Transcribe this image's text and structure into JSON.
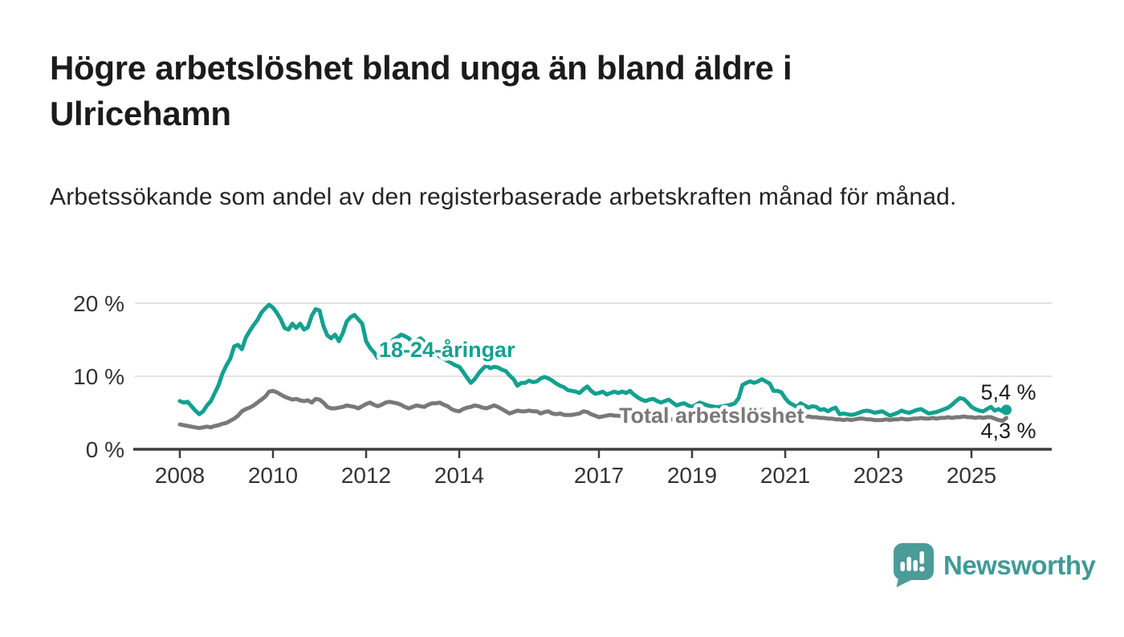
{
  "title": "Högre arbetslöshet bland unga än bland äldre i Ulricehamn",
  "subtitle": "Arbetssökande som andel av den registerbaserade arbetskraften månad för månad.",
  "branding": {
    "logo_text": "Newsworthy",
    "logo_icon": "speech-bubble-bar-chart-icon",
    "logo_icon_color": "#4a9c99",
    "logo_text_color": "#3f9a97"
  },
  "chart_data": {
    "type": "line",
    "unit": "%",
    "x_label": "",
    "y_label": "",
    "x_ticks": [
      2008,
      2010,
      2012,
      2014,
      2017,
      2019,
      2021,
      2023,
      2025
    ],
    "y_ticks": [
      {
        "value": 0,
        "label": "0 %"
      },
      {
        "value": 10,
        "label": "10 %"
      },
      {
        "value": 20,
        "label": "20 %"
      }
    ],
    "ylim": [
      0,
      21
    ],
    "x_range": [
      2008.0,
      2025.75
    ],
    "grid": true,
    "grid_color": "#d9d9d9",
    "axis_color": "#3d3d3d",
    "tick_text_color": "#333333",
    "series": [
      {
        "name": "18-24-åringar",
        "color": "#14a08f",
        "end_label": "5,4 %",
        "end_dot": true,
        "start_year": 2008,
        "points_per_year": 12,
        "values": [
          6.6,
          6.4,
          6.5,
          5.9,
          5.3,
          4.8,
          5.2,
          6.0,
          6.6,
          7.7,
          8.8,
          10.4,
          11.5,
          12.4,
          14.1,
          14.3,
          13.7,
          15.3,
          16.2,
          17.0,
          17.7,
          18.7,
          19.3,
          19.8,
          19.4,
          18.7,
          17.8,
          16.6,
          16.4,
          17.2,
          16.6,
          17.2,
          16.4,
          16.7,
          18.3,
          19.2,
          19.0,
          16.9,
          15.6,
          15.2,
          15.7,
          14.8,
          15.9,
          17.5,
          18.1,
          18.4,
          17.8,
          17.2,
          14.8,
          13.9,
          13.3,
          12.5,
          12.9,
          13.8,
          14.4,
          15.0,
          15.3,
          15.7,
          15.5,
          15.2,
          14.6,
          14.9,
          15.2,
          14.7,
          14.2,
          13.6,
          13.1,
          12.7,
          12.4,
          12.1,
          11.8,
          11.5,
          11.3,
          10.6,
          9.8,
          9.1,
          9.6,
          10.4,
          11.0,
          11.5,
          11.1,
          11.3,
          11.2,
          10.9,
          10.7,
          10.1,
          9.6,
          8.7,
          9.1,
          9.1,
          9.4,
          9.2,
          9.3,
          9.7,
          9.9,
          9.7,
          9.4,
          9.0,
          8.7,
          8.5,
          8.1,
          8.0,
          7.9,
          7.7,
          8.2,
          8.6,
          8.0,
          7.6,
          7.7,
          7.9,
          7.5,
          7.7,
          7.9,
          7.7,
          7.9,
          7.7,
          8.0,
          7.5,
          7.1,
          6.8,
          6.6,
          6.8,
          6.9,
          6.6,
          6.4,
          6.6,
          6.8,
          6.4,
          6.0,
          6.2,
          6.3,
          6.0,
          5.8,
          6.1,
          6.4,
          6.2,
          6.0,
          5.9,
          5.8,
          5.8,
          5.9,
          6.0,
          6.1,
          6.3,
          7.0,
          8.8,
          9.1,
          9.3,
          9.1,
          9.3,
          9.6,
          9.3,
          9.0,
          8.0,
          8.0,
          7.8,
          7.0,
          6.4,
          6.1,
          5.8,
          6.3,
          6.0,
          5.7,
          5.9,
          5.8,
          5.4,
          5.5,
          5.2,
          5.5,
          5.7,
          4.8,
          4.9,
          4.8,
          4.7,
          4.8,
          5.0,
          5.2,
          5.3,
          5.2,
          5.0,
          5.1,
          5.2,
          4.9,
          4.6,
          4.8,
          5.0,
          5.3,
          5.1,
          5.0,
          5.2,
          5.4,
          5.5,
          5.2,
          4.9,
          5.0,
          5.1,
          5.3,
          5.5,
          5.7,
          6.1,
          6.6,
          7.0,
          6.9,
          6.4,
          5.8,
          5.5,
          5.3,
          5.2,
          5.5,
          5.8,
          5.3,
          5.5,
          5.2,
          5.4
        ]
      },
      {
        "name": "Total arbetslöshet",
        "color": "#7b7877",
        "end_label": "4,3 %",
        "end_dot": false,
        "start_year": 2008,
        "points_per_year": 12,
        "values": [
          3.4,
          3.3,
          3.2,
          3.1,
          3.0,
          2.9,
          3.0,
          3.1,
          3.0,
          3.2,
          3.3,
          3.5,
          3.6,
          3.9,
          4.2,
          4.6,
          5.2,
          5.5,
          5.7,
          6.0,
          6.4,
          6.8,
          7.2,
          7.9,
          8.0,
          7.8,
          7.5,
          7.2,
          7.0,
          6.8,
          6.9,
          6.7,
          6.6,
          6.7,
          6.4,
          6.9,
          6.8,
          6.4,
          5.8,
          5.6,
          5.6,
          5.7,
          5.8,
          6.0,
          5.9,
          5.8,
          5.6,
          5.9,
          6.2,
          6.4,
          6.1,
          5.9,
          6.1,
          6.4,
          6.5,
          6.4,
          6.3,
          6.1,
          5.8,
          5.6,
          5.8,
          6.0,
          5.9,
          5.8,
          6.1,
          6.3,
          6.3,
          6.4,
          6.1,
          5.9,
          5.5,
          5.3,
          5.2,
          5.5,
          5.7,
          5.8,
          6.0,
          5.9,
          5.7,
          5.6,
          5.8,
          6.0,
          5.8,
          5.5,
          5.2,
          4.9,
          5.1,
          5.3,
          5.2,
          5.2,
          5.3,
          5.2,
          5.2,
          4.9,
          5.1,
          5.2,
          4.9,
          4.8,
          4.9,
          4.7,
          4.7,
          4.7,
          4.8,
          4.9,
          5.2,
          5.1,
          4.8,
          4.6,
          4.4,
          4.5,
          4.6,
          4.7,
          4.6,
          4.6,
          4.5,
          4.5,
          4.4,
          4.4,
          4.3,
          4.3,
          4.3,
          4.3,
          4.2,
          4.2,
          4.2,
          4.1,
          4.1,
          4.1,
          4.0,
          4.0,
          4.0,
          4.0,
          4.0,
          3.9,
          3.9,
          3.9,
          3.9,
          3.9,
          3.9,
          4.0,
          4.0,
          4.0,
          4.1,
          4.1,
          4.2,
          4.5,
          4.8,
          5.0,
          5.2,
          5.3,
          5.4,
          5.4,
          5.3,
          5.2,
          5.1,
          5.0,
          4.9,
          4.8,
          4.7,
          4.6,
          4.6,
          4.5,
          4.5,
          4.4,
          4.4,
          4.3,
          4.3,
          4.2,
          4.2,
          4.1,
          4.1,
          4.0,
          4.1,
          4.0,
          4.1,
          4.2,
          4.2,
          4.1,
          4.1,
          4.0,
          4.0,
          4.0,
          4.1,
          4.0,
          4.1,
          4.1,
          4.2,
          4.1,
          4.1,
          4.2,
          4.2,
          4.3,
          4.2,
          4.2,
          4.3,
          4.2,
          4.3,
          4.3,
          4.4,
          4.3,
          4.4,
          4.4,
          4.5,
          4.4,
          4.4,
          4.3,
          4.4,
          4.3,
          4.4,
          4.4,
          4.2,
          4.0,
          3.9,
          4.3
        ]
      }
    ]
  }
}
